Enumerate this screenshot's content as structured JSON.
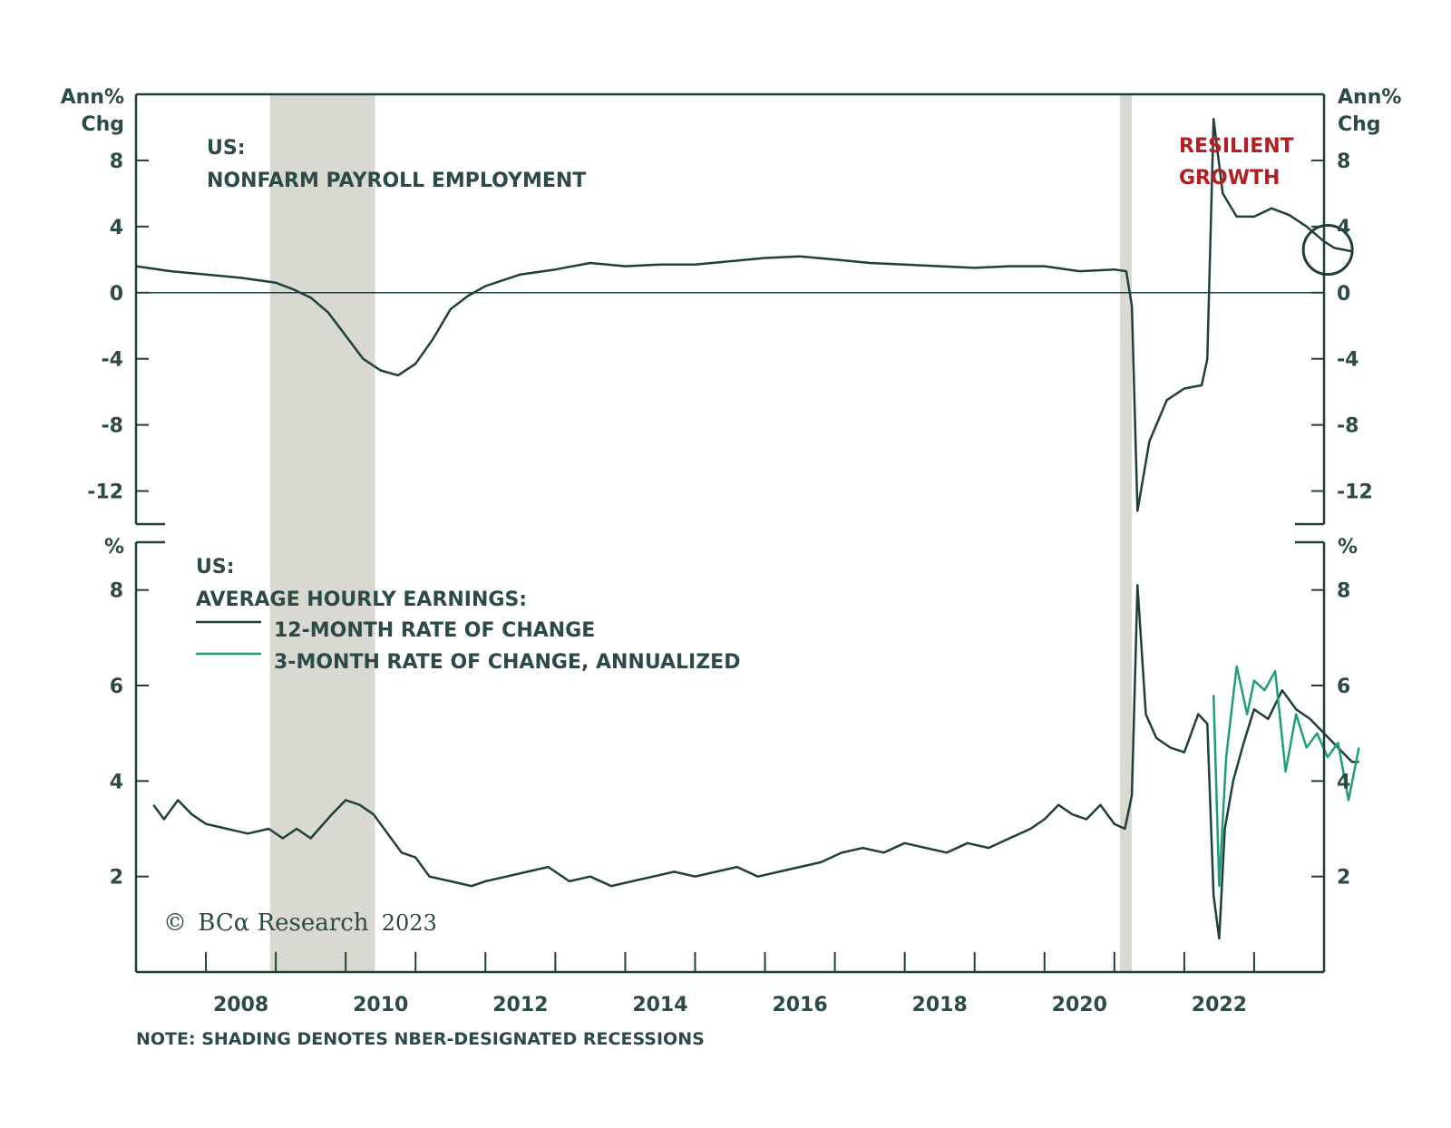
{
  "note": "NOTE: SHADING DENOTES NBER-DESIGNATED RECESSIONS",
  "colors": {
    "dark": "#1e3f3c",
    "green": "#1f9e7b",
    "recession": "#d9d8d1",
    "accent_red": "#b32024"
  },
  "copyright": {
    "symbol": "©",
    "brand": "BCα Research",
    "year": "2023"
  },
  "recessions": [
    {
      "start": 2007.92,
      "end": 2009.42
    },
    {
      "start": 2020.08,
      "end": 2020.25
    }
  ],
  "x_ticks": [
    "2008",
    "2010",
    "2012",
    "2014",
    "2016",
    "2018",
    "2020",
    "2022"
  ],
  "x_range": [
    2006.0,
    2023.0
  ],
  "chart_data": [
    {
      "type": "line",
      "title_line1": "US:",
      "title_line2": "NONFARM PAYROLL EMPLOYMENT",
      "ylabel_left": [
        "Ann%",
        "Chg"
      ],
      "ylabel_right": [
        "Ann%",
        "Chg"
      ],
      "ylim": [
        -14,
        12
      ],
      "yticks": [
        "8",
        "4",
        "0",
        "-4",
        "-8",
        "-12"
      ],
      "annotation": [
        "RESILIENT",
        "GROWTH"
      ],
      "highlight": {
        "x": 2022.95,
        "y": 2.7
      },
      "series": [
        {
          "color": "#1e3f3c",
          "points": [
            [
              2006.0,
              1.6
            ],
            [
              2006.5,
              1.3
            ],
            [
              2007.0,
              1.1
            ],
            [
              2007.5,
              0.9
            ],
            [
              2008.0,
              0.6
            ],
            [
              2008.25,
              0.2
            ],
            [
              2008.5,
              -0.3
            ],
            [
              2008.75,
              -1.2
            ],
            [
              2009.0,
              -2.6
            ],
            [
              2009.25,
              -4.0
            ],
            [
              2009.5,
              -4.7
            ],
            [
              2009.75,
              -5.0
            ],
            [
              2010.0,
              -4.3
            ],
            [
              2010.25,
              -2.8
            ],
            [
              2010.5,
              -1.0
            ],
            [
              2010.75,
              -0.2
            ],
            [
              2011.0,
              0.4
            ],
            [
              2011.5,
              1.1
            ],
            [
              2012.0,
              1.4
            ],
            [
              2012.5,
              1.8
            ],
            [
              2013.0,
              1.6
            ],
            [
              2013.5,
              1.7
            ],
            [
              2014.0,
              1.7
            ],
            [
              2014.5,
              1.9
            ],
            [
              2015.0,
              2.1
            ],
            [
              2015.5,
              2.2
            ],
            [
              2016.0,
              2.0
            ],
            [
              2016.5,
              1.8
            ],
            [
              2017.0,
              1.7
            ],
            [
              2017.5,
              1.6
            ],
            [
              2018.0,
              1.5
            ],
            [
              2018.5,
              1.6
            ],
            [
              2019.0,
              1.6
            ],
            [
              2019.5,
              1.3
            ],
            [
              2020.0,
              1.4
            ],
            [
              2020.17,
              1.3
            ],
            [
              2020.25,
              -0.8
            ],
            [
              2020.33,
              -13.2
            ],
            [
              2020.5,
              -9.0
            ],
            [
              2020.75,
              -6.5
            ],
            [
              2021.0,
              -5.8
            ],
            [
              2021.25,
              -5.6
            ],
            [
              2021.33,
              -4.0
            ],
            [
              2021.42,
              10.5
            ],
            [
              2021.55,
              6.0
            ],
            [
              2021.75,
              4.6
            ],
            [
              2022.0,
              4.6
            ],
            [
              2022.25,
              5.1
            ],
            [
              2022.5,
              4.7
            ],
            [
              2022.75,
              4.0
            ],
            [
              2023.0,
              3.1
            ],
            [
              2023.15,
              2.7
            ],
            [
              2023.4,
              2.5
            ]
          ]
        }
      ]
    },
    {
      "type": "line",
      "title_line1": "US:",
      "title_line2": "AVERAGE HOURLY EARNINGS:",
      "ylabel_left": [
        "%"
      ],
      "ylabel_right": [
        "%"
      ],
      "ylim": [
        0,
        9
      ],
      "yticks": [
        "8",
        "6",
        "4",
        "2"
      ],
      "series": [
        {
          "name": "12-MONTH RATE OF CHANGE",
          "color": "#1e3f3c",
          "points": [
            [
              2006.25,
              3.5
            ],
            [
              2006.4,
              3.2
            ],
            [
              2006.6,
              3.6
            ],
            [
              2006.8,
              3.3
            ],
            [
              2007.0,
              3.1
            ],
            [
              2007.3,
              3.0
            ],
            [
              2007.6,
              2.9
            ],
            [
              2007.9,
              3.0
            ],
            [
              2008.1,
              2.8
            ],
            [
              2008.3,
              3.0
            ],
            [
              2008.5,
              2.8
            ],
            [
              2008.8,
              3.3
            ],
            [
              2009.0,
              3.6
            ],
            [
              2009.2,
              3.5
            ],
            [
              2009.4,
              3.3
            ],
            [
              2009.6,
              2.9
            ],
            [
              2009.8,
              2.5
            ],
            [
              2010.0,
              2.4
            ],
            [
              2010.2,
              2.0
            ],
            [
              2010.5,
              1.9
            ],
            [
              2010.8,
              1.8
            ],
            [
              2011.0,
              1.9
            ],
            [
              2011.3,
              2.0
            ],
            [
              2011.6,
              2.1
            ],
            [
              2011.9,
              2.2
            ],
            [
              2012.2,
              1.9
            ],
            [
              2012.5,
              2.0
            ],
            [
              2012.8,
              1.8
            ],
            [
              2013.1,
              1.9
            ],
            [
              2013.4,
              2.0
            ],
            [
              2013.7,
              2.1
            ],
            [
              2014.0,
              2.0
            ],
            [
              2014.3,
              2.1
            ],
            [
              2014.6,
              2.2
            ],
            [
              2014.9,
              2.0
            ],
            [
              2015.2,
              2.1
            ],
            [
              2015.5,
              2.2
            ],
            [
              2015.8,
              2.3
            ],
            [
              2016.1,
              2.5
            ],
            [
              2016.4,
              2.6
            ],
            [
              2016.7,
              2.5
            ],
            [
              2017.0,
              2.7
            ],
            [
              2017.3,
              2.6
            ],
            [
              2017.6,
              2.5
            ],
            [
              2017.9,
              2.7
            ],
            [
              2018.2,
              2.6
            ],
            [
              2018.5,
              2.8
            ],
            [
              2018.8,
              3.0
            ],
            [
              2019.0,
              3.2
            ],
            [
              2019.2,
              3.5
            ],
            [
              2019.4,
              3.3
            ],
            [
              2019.6,
              3.2
            ],
            [
              2019.8,
              3.5
            ],
            [
              2020.0,
              3.1
            ],
            [
              2020.15,
              3.0
            ],
            [
              2020.25,
              3.7
            ],
            [
              2020.33,
              8.1
            ],
            [
              2020.45,
              5.4
            ],
            [
              2020.6,
              4.9
            ],
            [
              2020.8,
              4.7
            ],
            [
              2021.0,
              4.6
            ],
            [
              2021.2,
              5.4
            ],
            [
              2021.33,
              5.2
            ],
            [
              2021.42,
              1.6
            ],
            [
              2021.5,
              0.7
            ],
            [
              2021.58,
              3.0
            ],
            [
              2021.7,
              4.0
            ],
            [
              2021.85,
              4.8
            ],
            [
              2022.0,
              5.5
            ],
            [
              2022.2,
              5.3
            ],
            [
              2022.4,
              5.9
            ],
            [
              2022.6,
              5.5
            ],
            [
              2022.8,
              5.3
            ],
            [
              2023.0,
              5.0
            ],
            [
              2023.2,
              4.7
            ],
            [
              2023.4,
              4.4
            ],
            [
              2023.5,
              4.4
            ]
          ]
        },
        {
          "name": "3-MONTH RATE OF CHANGE, ANNUALIZED",
          "color": "#1f9e7b",
          "points": [
            [
              2021.42,
              5.8
            ],
            [
              2021.5,
              1.8
            ],
            [
              2021.6,
              4.5
            ],
            [
              2021.75,
              6.4
            ],
            [
              2021.9,
              5.4
            ],
            [
              2022.0,
              6.1
            ],
            [
              2022.15,
              5.9
            ],
            [
              2022.3,
              6.3
            ],
            [
              2022.45,
              4.2
            ],
            [
              2022.6,
              5.4
            ],
            [
              2022.75,
              4.7
            ],
            [
              2022.9,
              5.0
            ],
            [
              2023.05,
              4.5
            ],
            [
              2023.2,
              4.8
            ],
            [
              2023.35,
              3.6
            ],
            [
              2023.5,
              4.7
            ]
          ]
        }
      ]
    }
  ]
}
